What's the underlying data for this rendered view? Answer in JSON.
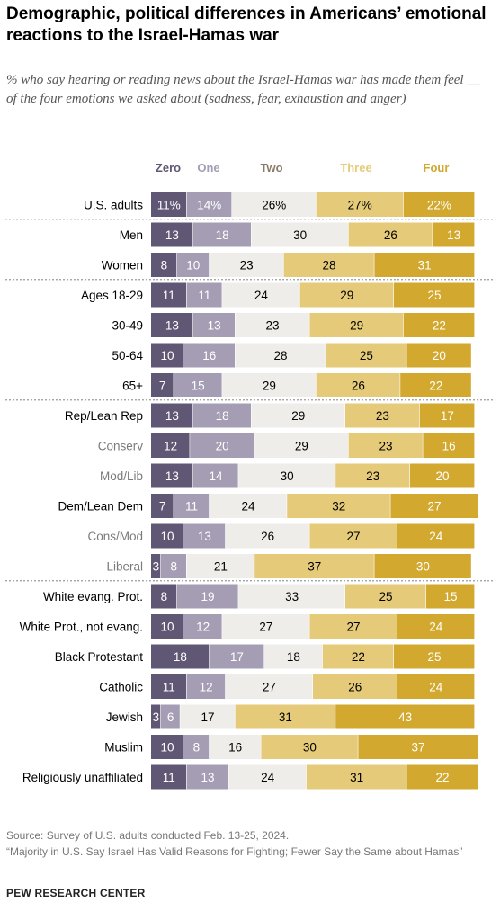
{
  "title": "Demographic, political differences in Americans’ emotional reactions to the Israel-Hamas war",
  "subtitle": "% who say hearing or reading news about the Israel-Hamas war has made them feel __ of the four emotions we asked about (sadness, fear, exhaustion and anger)",
  "source": "Source: Survey of U.S. adults conducted Feb. 13-25, 2024.",
  "report": "“Majority in U.S. Say Israel Has Valid Reasons for Fighting; Fewer Say the Same about Hamas”",
  "organization": "PEW RESEARCH CENTER",
  "colors": {
    "zero": "#5f5774",
    "one": "#a49db4",
    "two": "#efedea",
    "three": "#e5cb79",
    "four": "#d2a82f",
    "label_dark": "#000000",
    "label_light": "#7a7a7a",
    "divider": "#9a9a9a"
  },
  "chart_data": {
    "type": "bar",
    "orientation": "horizontal",
    "stacked": true,
    "xlim": [
      0,
      100
    ],
    "series": [
      {
        "name": "Zero",
        "color": "#5f5774",
        "header_color": "#5f5774",
        "text_color": "#ffffff"
      },
      {
        "name": "One",
        "color": "#a49db4",
        "header_color": "#a49db4",
        "text_color": "#ffffff"
      },
      {
        "name": "Two",
        "color": "#efedea",
        "header_color": "#8a7a6a",
        "text_color": "#000000"
      },
      {
        "name": "Three",
        "color": "#e5cb79",
        "header_color": "#e5cb79",
        "text_color": "#000000"
      },
      {
        "name": "Four",
        "color": "#d2a82f",
        "header_color": "#d2a82f",
        "text_color": "#ffffff"
      }
    ],
    "rows": [
      {
        "label": "U.S. adults",
        "sub": false,
        "values": [
          11,
          14,
          26,
          27,
          22
        ],
        "labels": [
          "11%",
          "14%",
          "26%",
          "27%",
          "22%"
        ]
      },
      {
        "label": "Men",
        "sub": false,
        "values": [
          13,
          18,
          30,
          26,
          13
        ],
        "divider_before": true
      },
      {
        "label": "Women",
        "sub": false,
        "values": [
          8,
          10,
          23,
          28,
          31
        ]
      },
      {
        "label": "Ages 18-29",
        "sub": false,
        "values": [
          11,
          11,
          24,
          29,
          25
        ],
        "divider_before": true
      },
      {
        "label": "30-49",
        "sub": false,
        "values": [
          13,
          13,
          23,
          29,
          22
        ]
      },
      {
        "label": "50-64",
        "sub": false,
        "values": [
          10,
          16,
          28,
          25,
          20
        ]
      },
      {
        "label": "65+",
        "sub": false,
        "values": [
          7,
          15,
          29,
          26,
          22
        ]
      },
      {
        "label": "Rep/Lean Rep",
        "sub": false,
        "values": [
          13,
          18,
          29,
          23,
          17
        ],
        "divider_before": true
      },
      {
        "label": "Conserv",
        "sub": true,
        "values": [
          12,
          20,
          29,
          23,
          16
        ]
      },
      {
        "label": "Mod/Lib",
        "sub": true,
        "values": [
          13,
          14,
          30,
          23,
          20
        ]
      },
      {
        "label": "Dem/Lean Dem",
        "sub": false,
        "values": [
          7,
          11,
          24,
          32,
          27
        ]
      },
      {
        "label": "Cons/Mod",
        "sub": true,
        "values": [
          10,
          13,
          26,
          27,
          24
        ]
      },
      {
        "label": "Liberal",
        "sub": true,
        "values": [
          3,
          8,
          21,
          37,
          30
        ]
      },
      {
        "label": "White evang. Prot.",
        "sub": false,
        "values": [
          8,
          19,
          33,
          25,
          15
        ],
        "divider_before": true
      },
      {
        "label": "White Prot., not evang.",
        "sub": false,
        "values": [
          10,
          12,
          27,
          27,
          24
        ]
      },
      {
        "label": "Black Protestant",
        "sub": false,
        "values": [
          18,
          17,
          18,
          22,
          25
        ]
      },
      {
        "label": "Catholic",
        "sub": false,
        "values": [
          11,
          12,
          27,
          26,
          24
        ]
      },
      {
        "label": "Jewish",
        "sub": false,
        "values": [
          3,
          6,
          17,
          31,
          43
        ]
      },
      {
        "label": "Muslim",
        "sub": false,
        "values": [
          10,
          8,
          16,
          30,
          37
        ]
      },
      {
        "label": "Religiously unaffiliated",
        "sub": false,
        "values": [
          11,
          13,
          24,
          31,
          22
        ]
      }
    ]
  }
}
